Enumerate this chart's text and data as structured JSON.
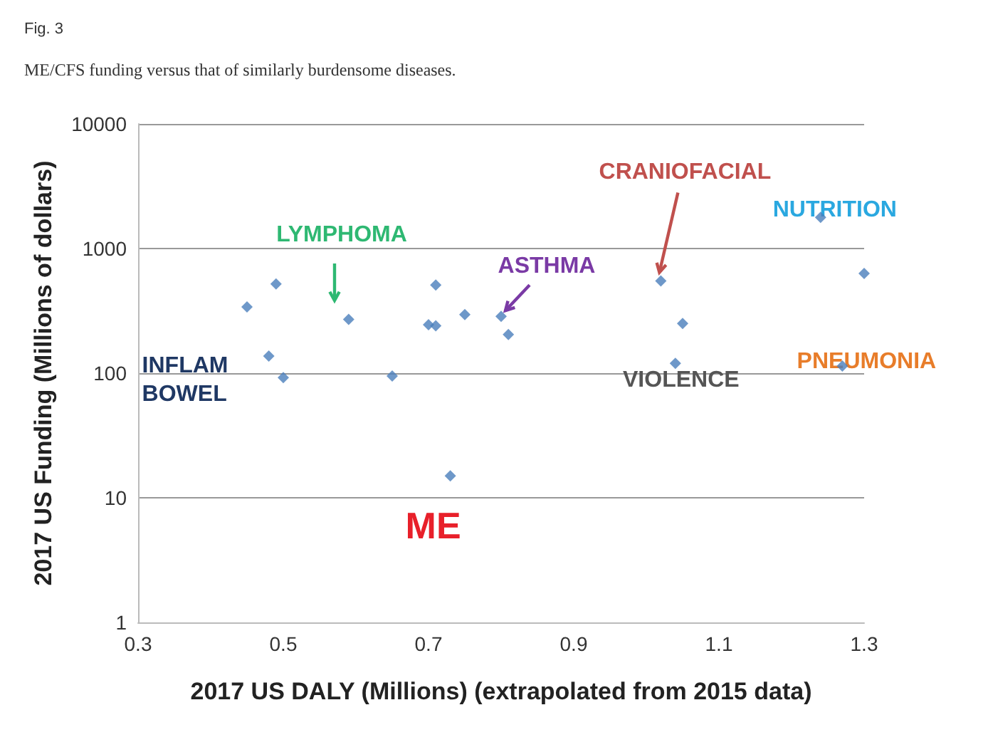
{
  "chart_data": {
    "type": "scatter",
    "title": "Fig. 3",
    "subtitle": "ME/CFS funding versus that of similarly burdensome diseases.",
    "xlabel": "2017 US DALY (Millions) (extrapolated from 2015 data)",
    "ylabel": "2017 US Funding (Millions of dollars)",
    "x": [
      0.45,
      0.49,
      0.48,
      0.5,
      0.59,
      0.65,
      0.71,
      0.7,
      0.71,
      0.75,
      0.8,
      0.81,
      0.73,
      1.02,
      1.05,
      1.04,
      1.24,
      1.3,
      1.27
    ],
    "series": [
      {
        "color": "#4a7ebb",
        "values": [
          340,
          520,
          137,
          92,
          270,
          95,
          510,
          245,
          240,
          295,
          286,
          204,
          15,
          550,
          250,
          120,
          1780,
          630,
          114
        ]
      }
    ],
    "xlim": [
      0.3,
      1.3
    ],
    "xticks": [
      0.3,
      0.5,
      0.7,
      0.9,
      1.1,
      1.3
    ],
    "ylim": [
      1,
      10000
    ],
    "yticks": [
      1,
      10,
      100,
      1000,
      10000
    ],
    "log": "y",
    "grid": "y",
    "marker": "diamond",
    "annotations": [
      "LYMPHOMA",
      {
        "text": "ASTHMA",
        "x": 0.8,
        "y": 286
      },
      {
        "text": "CRANIOFACIAL",
        "x": 1.02,
        "y": 550
      },
      {
        "text": "NUTRITION",
        "x": 1.24,
        "y": 1780
      },
      {
        "text": "PNEUMONIA",
        "x": 1.27,
        "y": 114
      },
      {
        "text": "VIOLENCE",
        "x": 1.04,
        "y": 120
      },
      {
        "text": "INFLAM\nBOWEL",
        "x": 0.48,
        "y": 137
      },
      {
        "text": "ME",
        "x": 0.73,
        "y": 15
      }
    ]
  }
}
